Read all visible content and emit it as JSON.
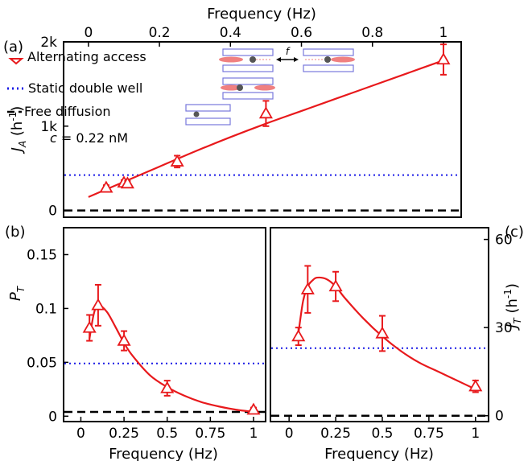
{
  "chart_data": [
    {
      "panel_label": "(a)",
      "type": "line",
      "xlabel": "Frequency (Hz)",
      "ylabel": "J",
      "ylabel_sub": "A",
      "ylabel_unit": " (h",
      "ylabel_unit_sup": "-1",
      "ylabel_unit_end": ")",
      "xlim": [
        -0.07,
        1.05
      ],
      "ylim": [
        -80,
        2000
      ],
      "x_ticks": [
        0,
        0.2,
        0.4,
        0.6,
        0.8,
        1
      ],
      "x_tick_labels": [
        "0",
        "0.2",
        "0.4",
        "0.6",
        "0.8",
        "1"
      ],
      "y_ticks": [
        0,
        1000,
        2000
      ],
      "y_tick_labels": [
        "0",
        "1k",
        "2k"
      ],
      "series": [
        {
          "name": "Alternating access",
          "marker": "triangle",
          "color": "#e8191c",
          "points": [
            {
              "x": 0.05,
              "y": 270,
              "err": 30
            },
            {
              "x": 0.1,
              "y": 330,
              "err": 30
            },
            {
              "x": 0.11,
              "y": 320,
              "err": 30
            },
            {
              "x": 0.25,
              "y": 580,
              "err": 70
            },
            {
              "x": 0.5,
              "y": 1150,
              "err": 150
            },
            {
              "x": 1.0,
              "y": 1790,
              "err": 180
            }
          ],
          "fit": [
            [
              0.0,
              160
            ],
            [
              0.05,
              250
            ],
            [
              0.1,
              340
            ],
            [
              0.2,
              520
            ],
            [
              0.3,
              700
            ],
            [
              0.4,
              870
            ],
            [
              0.5,
              1030
            ],
            [
              0.6,
              1180
            ],
            [
              0.7,
              1330
            ],
            [
              0.8,
              1480
            ],
            [
              0.9,
              1630
            ],
            [
              1.0,
              1780
            ]
          ]
        },
        {
          "name": "Static double well",
          "style": "dotted",
          "color": "#1a1ae6",
          "y": 420
        },
        {
          "name": "Free diffusion",
          "style": "dashed",
          "color": "#000000",
          "y": 0
        }
      ],
      "annotation": "c = 0.22 nM",
      "annotation_var": "c",
      "annotation_rest": " = 0.22 nM",
      "diagram_label": "f",
      "colors": {
        "alternating": "#e8191c",
        "static": "#1a1ae6",
        "free": "#000000",
        "box": "#7777dd",
        "blob": "#f08080",
        "particle": "#555555"
      }
    },
    {
      "panel_label": "(b)",
      "type": "line",
      "xlabel": "Frequency (Hz)",
      "ylabel": "P",
      "ylabel_sub": "T",
      "xlim": [
        -0.1,
        1.07
      ],
      "ylim": [
        -0.005,
        0.175
      ],
      "x_ticks": [
        0,
        0.25,
        0.5,
        0.75,
        1
      ],
      "x_tick_labels": [
        "0",
        "0.25",
        "0.5",
        "0.75",
        "1"
      ],
      "y_ticks": [
        0,
        0.05,
        0.1,
        0.15
      ],
      "y_tick_labels": [
        "0",
        "0.05",
        "0.1",
        "0.15"
      ],
      "series": [
        {
          "name": "Alternating access",
          "marker": "triangle",
          "color": "#e8191c",
          "points": [
            {
              "x": 0.05,
              "y": 0.082,
              "err": 0.012
            },
            {
              "x": 0.1,
              "y": 0.103,
              "err": 0.019
            },
            {
              "x": 0.25,
              "y": 0.07,
              "err": 0.009
            },
            {
              "x": 0.5,
              "y": 0.026,
              "err": 0.007
            },
            {
              "x": 1.0,
              "y": 0.006,
              "err": 0.002
            }
          ],
          "fit": [
            [
              0.05,
              0.072
            ],
            [
              0.075,
              0.095
            ],
            [
              0.1,
              0.103
            ],
            [
              0.15,
              0.097
            ],
            [
              0.2,
              0.083
            ],
            [
              0.25,
              0.068
            ],
            [
              0.3,
              0.056
            ],
            [
              0.4,
              0.038
            ],
            [
              0.5,
              0.027
            ],
            [
              0.6,
              0.019
            ],
            [
              0.7,
              0.013
            ],
            [
              0.8,
              0.009
            ],
            [
              0.9,
              0.006
            ],
            [
              1.0,
              0.004
            ]
          ]
        },
        {
          "name": "Static double well",
          "style": "dotted",
          "color": "#1a1ae6",
          "y": 0.049
        },
        {
          "name": "Free diffusion",
          "style": "dashed",
          "color": "#000000",
          "y": 0.004
        }
      ]
    },
    {
      "panel_label": "(c)",
      "type": "line",
      "xlabel": "Frequency (Hz)",
      "ylabel": "J",
      "ylabel_sub": "T",
      "ylabel_unit": " (h",
      "ylabel_unit_sup": "-1",
      "ylabel_unit_end": ")",
      "xlim": [
        -0.1,
        1.07
      ],
      "ylim": [
        -2,
        64
      ],
      "x_ticks": [
        0,
        0.25,
        0.5,
        0.75,
        1
      ],
      "x_tick_labels": [
        "0",
        "0.25",
        "0.5",
        "0.75",
        "1"
      ],
      "y_ticks": [
        0,
        30,
        60
      ],
      "y_tick_labels": [
        "0",
        "30",
        "60"
      ],
      "series": [
        {
          "name": "Alternating access",
          "marker": "triangle",
          "color": "#e8191c",
          "points": [
            {
              "x": 0.05,
              "y": 27,
              "err": 3
            },
            {
              "x": 0.1,
              "y": 43,
              "err": 8
            },
            {
              "x": 0.25,
              "y": 44,
              "err": 5
            },
            {
              "x": 0.5,
              "y": 28,
              "err": 6
            },
            {
              "x": 1.0,
              "y": 10,
              "err": 2
            }
          ],
          "fit": [
            [
              0.05,
              28
            ],
            [
              0.075,
              39
            ],
            [
              0.1,
              44
            ],
            [
              0.125,
              46
            ],
            [
              0.15,
              47
            ],
            [
              0.2,
              46.5
            ],
            [
              0.25,
              44
            ],
            [
              0.3,
              40
            ],
            [
              0.4,
              33
            ],
            [
              0.5,
              27
            ],
            [
              0.6,
              22
            ],
            [
              0.7,
              18
            ],
            [
              0.8,
              15
            ],
            [
              0.9,
              12
            ],
            [
              1.0,
              9
            ]
          ]
        },
        {
          "name": "Static double well",
          "style": "dotted",
          "color": "#1a1ae6",
          "y": 23
        },
        {
          "name": "Free diffusion",
          "style": "dashed",
          "color": "#000000",
          "y": 0
        }
      ]
    }
  ]
}
